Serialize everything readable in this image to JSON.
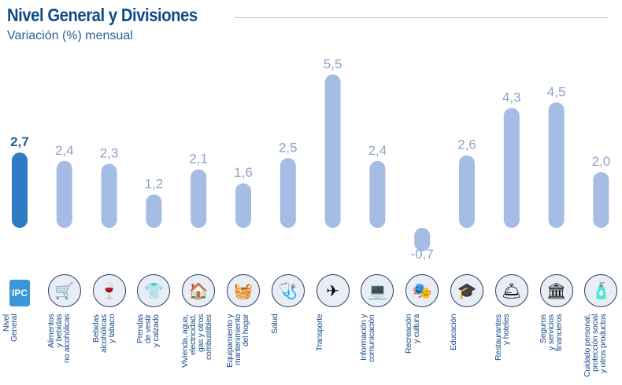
{
  "header": {
    "title": "Nivel General y Divisiones",
    "subtitle": "Variación (%) mensual"
  },
  "colors": {
    "highlight": "#2f7cc4",
    "bar": "#a5bde4",
    "highlight_label": "#1f5f9c",
    "bar_label": "#8ea3c6"
  },
  "chart_data": {
    "type": "bar",
    "title": "Nivel General y Divisiones",
    "subtitle": "Variación (%) mensual",
    "categories": [
      "Nivel General",
      "Alimentos y bebidas no alcohólicas",
      "Bebidas alcohólicas y tabaco",
      "Prendas de vestir y calzado",
      "Vivienda, agua, electricidad, gas y otros combustibles",
      "Equipamiento y mantenimiento del hogar",
      "Salud",
      "Transporte",
      "Información y comunicación",
      "Recreación y cultura",
      "Educación",
      "Restaurantes y hoteles",
      "Seguros y servicios financieros",
      "Cuidado personal, protección social y otros productos"
    ],
    "values": [
      2.7,
      2.4,
      2.3,
      1.2,
      2.1,
      1.6,
      2.5,
      5.5,
      2.4,
      -0.7,
      2.6,
      4.3,
      4.5,
      2.0
    ],
    "data_labels": [
      "2,7",
      "2,4",
      "2,3",
      "1,2",
      "2,1",
      "1,6",
      "2,5",
      "5,5",
      "2,4",
      "-0,7",
      "2,6",
      "4,3",
      "4,5",
      "2,0"
    ],
    "highlighted": [
      "Nivel General"
    ],
    "grid": false,
    "legend": "none"
  },
  "axis_labels": [
    "Nivel\nGeneral",
    "Alimentos\ny bebidas\nno alcohólicas",
    "Bebidas\nalcohólicas\ny tabaco",
    "Prendas\nde vestir\ny calzado",
    "Vivienda, agua,\nelectricidad,\ngas y otros\ncombustibles",
    "Equipamiento y\nmantenimiento\ndel hogar",
    "Salud",
    "Transporte",
    "Información y\ncomunicación",
    "Recreación\ny cultura",
    "Educación",
    "Restaurantes\ny hoteles",
    "Seguros\ny servicios\nfinancieros",
    "Cuidado personal,\nprotección social\ny otros productos"
  ],
  "logo_text": "IPC BA",
  "icons": [
    "ipc-ba-logo",
    "groceries-icon",
    "wine-bottle-icon",
    "clothing-icon",
    "house-utilities-icon",
    "washing-machine-icon",
    "doctor-icon",
    "plane-car-icon",
    "laptop-phone-icon",
    "theater-popcorn-icon",
    "school-icon",
    "cloche-icon",
    "bank-icon",
    "personal-care-icon"
  ],
  "icon_glyphs": [
    "IPC",
    "🛒",
    "🍷",
    "👕",
    "🏠",
    "🧺",
    "🩺",
    "✈",
    "💻",
    "🎭",
    "🎓",
    "🛎",
    "🏛",
    "🧴"
  ]
}
